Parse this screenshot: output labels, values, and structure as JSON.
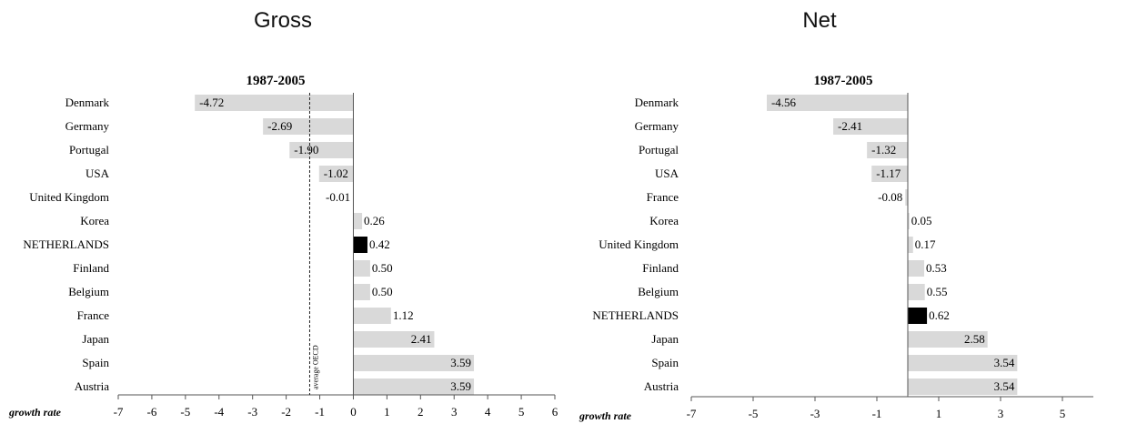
{
  "colors": {
    "bar": "#d9d9d9",
    "highlight": "#000000",
    "axis": "#555555"
  },
  "chart_data": [
    {
      "type": "bar",
      "orientation": "horizontal",
      "panel_title": "Gross",
      "title": "1987-2005",
      "xlabel": "growth rate",
      "xlim": [
        -7,
        6
      ],
      "xticks": [
        -7,
        -6,
        -5,
        -4,
        -3,
        -2,
        -1,
        0,
        1,
        2,
        3,
        4,
        5,
        6
      ],
      "categories": [
        "Denmark",
        "Germany",
        "Portugal",
        "USA",
        "United Kingdom",
        "Korea",
        "NETHERLANDS",
        "Finland",
        "Belgium",
        "France",
        "Japan",
        "Spain",
        "Austria"
      ],
      "values": [
        -4.72,
        -2.69,
        -1.9,
        -1.02,
        -0.01,
        0.26,
        0.42,
        0.5,
        0.5,
        1.12,
        2.41,
        3.59,
        3.59
      ],
      "value_labels": [
        "-4.72",
        "-2.69",
        "-1.90",
        "-1.02",
        "-0.01",
        "0.26",
        "0.42",
        "0.50",
        "0.50",
        "1.12",
        "2.41",
        "3.59",
        "3.59"
      ],
      "highlight": "NETHERLANDS",
      "reference_line": {
        "label": "average OECD",
        "value": -1.3
      }
    },
    {
      "type": "bar",
      "orientation": "horizontal",
      "panel_title": "Net",
      "title": "1987-2005",
      "xlabel": "growth rate",
      "xlim": [
        -7,
        6
      ],
      "xticks": [
        -7,
        -5,
        -3,
        -1,
        1,
        3,
        5
      ],
      "categories": [
        "Denmark",
        "Germany",
        "Portugal",
        "USA",
        "France",
        "Korea",
        "United Kingdom",
        "Finland",
        "Belgium",
        "NETHERLANDS",
        "Japan",
        "Spain",
        "Austria"
      ],
      "values": [
        -4.56,
        -2.41,
        -1.32,
        -1.17,
        -0.08,
        0.05,
        0.17,
        0.53,
        0.55,
        0.62,
        2.58,
        3.54,
        3.54
      ],
      "value_labels": [
        "-4.56",
        "-2.41",
        "-1.32",
        "-1.17",
        "-0.08",
        "0.05",
        "0.17",
        "0.53",
        "0.55",
        "0.62",
        "2.58",
        "3.54",
        "3.54"
      ],
      "highlight": "NETHERLANDS"
    }
  ]
}
